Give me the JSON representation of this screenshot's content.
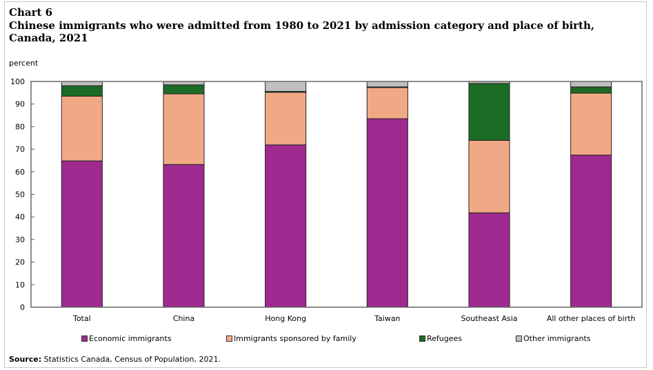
{
  "chart_data": {
    "type": "bar",
    "stacked": true,
    "chart_number": "Chart 6",
    "title": "Chinese immigrants who were admitted from 1980 to 2021 by admission category and place of birth, Canada, 2021",
    "ylabel": "percent",
    "xlabel": "",
    "ylim": [
      0,
      100
    ],
    "yticks": [
      0,
      10,
      20,
      30,
      40,
      50,
      60,
      70,
      80,
      90,
      100
    ],
    "grid": false,
    "legend_position": "bottom",
    "categories": [
      "Total",
      "China",
      "Hong Kong",
      "Taiwan",
      "Southeast Asia",
      "All other places of birth"
    ],
    "series": [
      {
        "name": "Economic immigrants",
        "color": "#9e2a8f",
        "values": [
          64.8,
          63.2,
          71.9,
          83.5,
          41.8,
          67.4
        ]
      },
      {
        "name": "Immigrants sponsored by family",
        "color": "#f1a985",
        "values": [
          28.7,
          31.3,
          23.3,
          13.8,
          32.1,
          27.4
        ]
      },
      {
        "name": "Refugees",
        "color": "#1c6b25",
        "values": [
          4.6,
          4.0,
          0.4,
          0.3,
          25.2,
          2.8
        ]
      },
      {
        "name": "Other immigrants",
        "color": "#c0c0c0",
        "values": [
          1.9,
          1.5,
          4.4,
          2.4,
          0.9,
          2.4
        ]
      }
    ]
  },
  "source": {
    "label": "Source:",
    "text": " Statistics Canada, Census of Population, 2021."
  }
}
